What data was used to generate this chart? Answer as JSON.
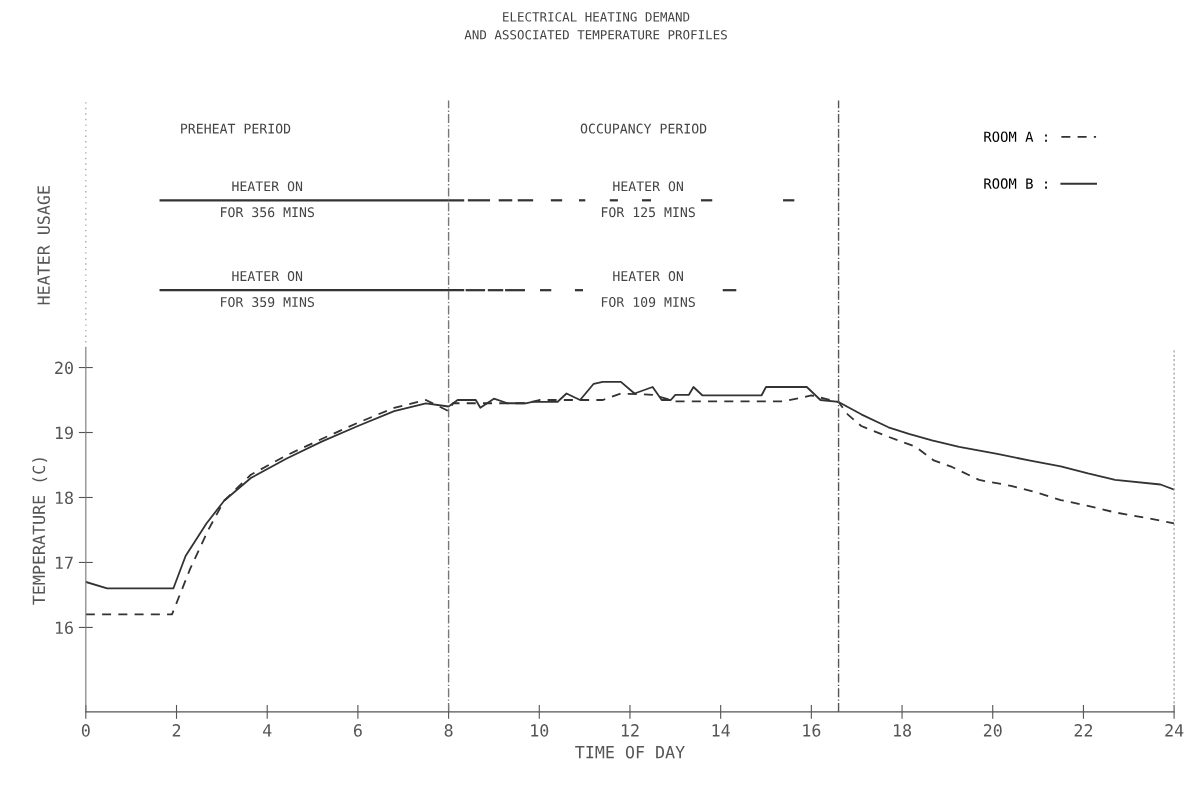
{
  "chart_data": {
    "type": "line",
    "title": "ELECTRICAL HEATING DEMAND\nAND ASSOCIATED TEMPERATURE PROFILES",
    "xlabel": "TIME OF DAY",
    "ylabel": "TEMPERATURE (C)",
    "xlim": [
      0,
      24
    ],
    "ylim": [
      14.7,
      20.3
    ],
    "xticks": [
      0,
      2,
      4,
      6,
      8,
      10,
      12,
      14,
      16,
      18,
      20,
      22,
      24
    ],
    "yticks": [
      16,
      17,
      18,
      19,
      20
    ],
    "legend": "top right",
    "marker": "none",
    "series": [
      {
        "name": "ROOM A :",
        "color": "#333333",
        "line_style": "dashed",
        "x": [
          0,
          1.9,
          2.3,
          2.7,
          3.05,
          3.64,
          4.43,
          5.2,
          6.0,
          6.8,
          7.5,
          8.0,
          8.1,
          9.0,
          9.7,
          10.0,
          10.9,
          11.4,
          11.8,
          12.5,
          13.0,
          15.4,
          16.0,
          16.6,
          16.8,
          17.1,
          17.6,
          18.3,
          18.7,
          19.1,
          19.7,
          20.4,
          21.0,
          21.5,
          22.1,
          22.7,
          23.5,
          24
        ],
        "values": [
          16.2,
          16.2,
          16.9,
          17.5,
          17.95,
          18.35,
          18.65,
          18.9,
          19.15,
          19.38,
          19.5,
          19.33,
          19.45,
          19.45,
          19.45,
          19.5,
          19.5,
          19.5,
          19.6,
          19.58,
          19.48,
          19.48,
          19.57,
          19.47,
          19.28,
          19.1,
          18.96,
          18.78,
          18.57,
          18.47,
          18.27,
          18.18,
          18.07,
          17.96,
          17.87,
          17.77,
          17.67,
          17.6
        ]
      },
      {
        "name": "ROOM B :",
        "color": "#333333",
        "line_style": "solid",
        "x": [
          0,
          0.47,
          1.93,
          2.2,
          2.66,
          3.05,
          3.64,
          4.43,
          5.2,
          6.0,
          6.8,
          7.5,
          8.0,
          8.2,
          8.6,
          8.7,
          9.0,
          9.3,
          9.7,
          9.85,
          10.4,
          10.6,
          10.9,
          11.2,
          11.4,
          11.8,
          12.1,
          12.5,
          12.7,
          12.9,
          13.0,
          13.3,
          13.4,
          13.6,
          14.9,
          15.0,
          15.9,
          16.2,
          16.6,
          17.1,
          17.7,
          18.15,
          18.66,
          19.26,
          20.1,
          20.8,
          21.5,
          22.1,
          22.7,
          23.7,
          24
        ],
        "values": [
          16.7,
          16.6,
          16.6,
          17.1,
          17.6,
          17.95,
          18.3,
          18.6,
          18.86,
          19.1,
          19.33,
          19.45,
          19.4,
          19.5,
          19.5,
          19.38,
          19.52,
          19.45,
          19.45,
          19.47,
          19.47,
          19.6,
          19.5,
          19.75,
          19.78,
          19.78,
          19.6,
          19.7,
          19.5,
          19.5,
          19.58,
          19.58,
          19.7,
          19.57,
          19.57,
          19.7,
          19.7,
          19.5,
          19.47,
          19.28,
          19.08,
          18.98,
          18.88,
          18.78,
          18.67,
          18.57,
          18.48,
          18.37,
          18.27,
          18.2,
          18.12
        ]
      }
    ],
    "ref_lines": [
      {
        "axis": "x",
        "value": 8,
        "color": "#777777",
        "line_style": "dashdot"
      },
      {
        "axis": "x",
        "value": 16.6,
        "color": "#555555",
        "line_style": "dashdot"
      }
    ],
    "annotations": [
      "HEATER USAGE",
      "PREHEAT PERIOD",
      "OCCUPANCY PERIOD",
      "HEATER ON\nFOR 356 MINS",
      "HEATER ON\nFOR 125 MINS",
      "HEATER ON\nFOR 359 MINS",
      "HEATER ON\nFOR 109 MINS"
    ]
  }
}
